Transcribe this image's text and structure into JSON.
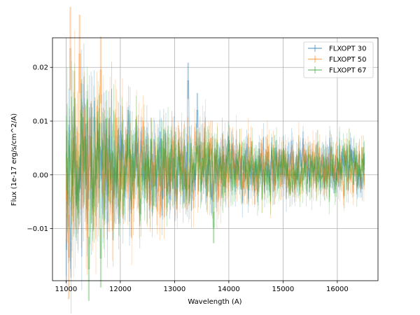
{
  "chart_data": {
    "type": "line",
    "title": "",
    "xlabel": "Wavelength (A)",
    "ylabel": "Flux (1e-17 erg/s/cm^2/A)",
    "xlim": [
      10750,
      16750
    ],
    "ylim": [
      -0.0197,
      0.0255
    ],
    "x_ticks": [
      11000,
      12000,
      13000,
      14000,
      15000,
      16000
    ],
    "x_tick_labels": [
      "11000",
      "12000",
      "13000",
      "14000",
      "15000",
      "16000"
    ],
    "y_ticks": [
      -0.01,
      0.0,
      0.01,
      0.02
    ],
    "y_tick_labels": [
      "−0.01",
      "0.00",
      "0.01",
      "0.02"
    ],
    "grid": true,
    "legend_position": "top-right",
    "x_range": [
      11000,
      16500
    ],
    "x_step": 10,
    "series": [
      {
        "name": "FLXOPT 30",
        "color": "#1f77b4",
        "noise_amplitude_by_wavelength": [
          [
            11000,
            0.0125
          ],
          [
            12000,
            0.0085
          ],
          [
            13000,
            0.0065
          ],
          [
            14000,
            0.005
          ],
          [
            15000,
            0.0042
          ],
          [
            16500,
            0.004
          ]
        ],
        "features": [
          {
            "x": 13250,
            "y": 0.0175
          },
          {
            "x": 13420,
            "y": 0.012
          }
        ]
      },
      {
        "name": "FLXOPT 50",
        "color": "#ff7f0e",
        "noise_amplitude_by_wavelength": [
          [
            11000,
            0.0145
          ],
          [
            12000,
            0.0095
          ],
          [
            13000,
            0.0068
          ],
          [
            14000,
            0.0055
          ],
          [
            15000,
            0.0045
          ],
          [
            16500,
            0.004
          ]
        ],
        "features": [
          {
            "x": 11080,
            "y": 0.0235
          },
          {
            "x": 11250,
            "y": 0.0225
          },
          {
            "x": 11640,
            "y": 0.0195
          },
          {
            "x": 11050,
            "y": -0.0153
          }
        ]
      },
      {
        "name": "FLXOPT 67",
        "color": "#2ca02c",
        "noise_amplitude_by_wavelength": [
          [
            11000,
            0.0125
          ],
          [
            12000,
            0.0085
          ],
          [
            13000,
            0.006
          ],
          [
            14000,
            0.005
          ],
          [
            15000,
            0.0042
          ],
          [
            16500,
            0.004
          ]
        ],
        "features": [
          {
            "x": 11420,
            "y": -0.0175
          },
          {
            "x": 11640,
            "y": -0.0155
          },
          {
            "x": 13720,
            "y": -0.0098
          }
        ]
      }
    ]
  }
}
